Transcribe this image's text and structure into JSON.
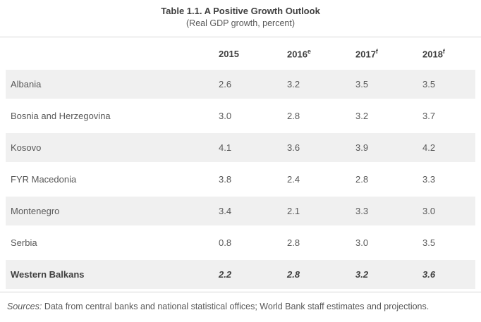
{
  "chart_data": {
    "type": "table",
    "title": "Table 1.1. A Positive Growth Outlook",
    "subtitle": "(Real GDP growth, percent)",
    "columns": [
      {
        "label": "2015",
        "sup": ""
      },
      {
        "label": "2016",
        "sup": "e"
      },
      {
        "label": "2017",
        "sup": "f"
      },
      {
        "label": "2018",
        "sup": "f"
      }
    ],
    "rows": [
      {
        "label": "Albania",
        "values": [
          2.6,
          3.2,
          3.5,
          3.5
        ],
        "emphasis": false
      },
      {
        "label": "Bosnia and Herzegovina",
        "values": [
          3.0,
          2.8,
          3.2,
          3.7
        ],
        "emphasis": false
      },
      {
        "label": "Kosovo",
        "values": [
          4.1,
          3.6,
          3.9,
          4.2
        ],
        "emphasis": false
      },
      {
        "label": "FYR Macedonia",
        "values": [
          3.8,
          2.4,
          2.8,
          3.3
        ],
        "emphasis": false
      },
      {
        "label": "Montenegro",
        "values": [
          3.4,
          2.1,
          3.3,
          3.0
        ],
        "emphasis": false
      },
      {
        "label": "Serbia",
        "values": [
          0.8,
          2.8,
          3.0,
          3.5
        ],
        "emphasis": false
      },
      {
        "label": "Western Balkans",
        "values": [
          2.2,
          2.8,
          3.2,
          3.6
        ],
        "emphasis": true
      }
    ],
    "footnote": {
      "label": "Sources:",
      "text": " Data from central banks and national statistical offices; World Bank staff estimates and projections."
    },
    "value_decimals": 1,
    "layout": {
      "stripes": true,
      "grid": "horizontal-rules-only"
    }
  },
  "colors": {
    "stripe": "#f0f0f0",
    "body_text": "#595959",
    "heading_text": "#404040",
    "rule": "#d6d6d6"
  }
}
